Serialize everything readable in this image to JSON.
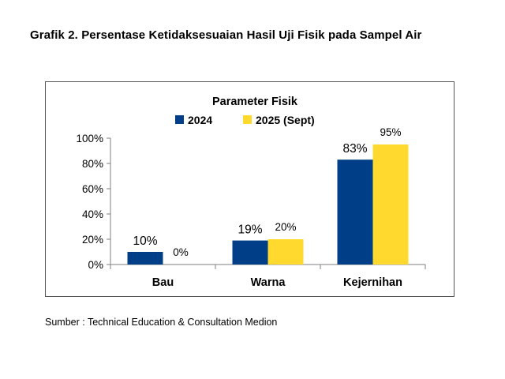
{
  "page": {
    "title": "Grafik 2. Persentase Ketidaksesuaian Hasil Uji Fisik pada Sampel Air",
    "source": "Sumber : Technical Education & Consultation Medion"
  },
  "colors": {
    "series_2024": "#003F87",
    "series_2025": "#FFD92E"
  },
  "chart_data": {
    "type": "bar",
    "title": "Parameter Fisik",
    "categories": [
      "Bau",
      "Warna",
      "Kejernihan"
    ],
    "series": [
      {
        "name": "2024",
        "values": [
          10,
          19,
          83
        ],
        "labels": [
          "10%",
          "19%",
          "83%"
        ]
      },
      {
        "name": "2025 (Sept)",
        "values": [
          0,
          20,
          95
        ],
        "labels": [
          "0%",
          "20%",
          "95%"
        ]
      }
    ],
    "y_ticks": [
      {
        "value": 0,
        "label": "0%"
      },
      {
        "value": 20,
        "label": "20%"
      },
      {
        "value": 40,
        "label": "40%"
      },
      {
        "value": 60,
        "label": "60%"
      },
      {
        "value": 80,
        "label": "80%"
      },
      {
        "value": 100,
        "label": "100%"
      }
    ],
    "ylim": [
      0,
      100
    ],
    "xlabel": "",
    "ylabel": "",
    "legend_position": "top",
    "grid": false
  }
}
